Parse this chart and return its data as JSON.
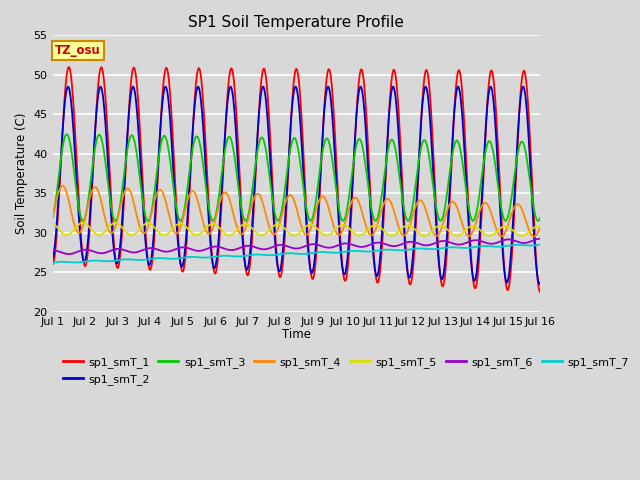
{
  "title": "SP1 Soil Temperature Profile",
  "xlabel": "Time",
  "ylabel": "Soil Temperature (C)",
  "ylim": [
    20,
    55
  ],
  "xlim": [
    0,
    15
  ],
  "xtick_labels": [
    "Jul 1",
    "Jul 2",
    "Jul 3",
    "Jul 4",
    "Jul 5",
    "Jul 6",
    "Jul 7",
    "Jul 8",
    "Jul 9",
    "Jul 10",
    "Jul 11",
    "Jul 12",
    "Jul 13",
    "Jul 14",
    "Jul 15",
    "Jul 16"
  ],
  "ytick_values": [
    20,
    25,
    30,
    35,
    40,
    45,
    50,
    55
  ],
  "annotation_text": "TZ_osu",
  "series_colors": {
    "sp1_smT_1": "#FF0000",
    "sp1_smT_2": "#0000CC",
    "sp1_smT_3": "#00CC00",
    "sp1_smT_4": "#FF8800",
    "sp1_smT_5": "#DDDD00",
    "sp1_smT_6": "#9900CC",
    "sp1_smT_7": "#00CCCC"
  },
  "background_color": "#D8D8D8",
  "plot_bg_color": "#D8D8D8",
  "grid_color": "#FFFFFF",
  "num_days": 15,
  "points_per_day": 96,
  "legend_ncol": 6
}
